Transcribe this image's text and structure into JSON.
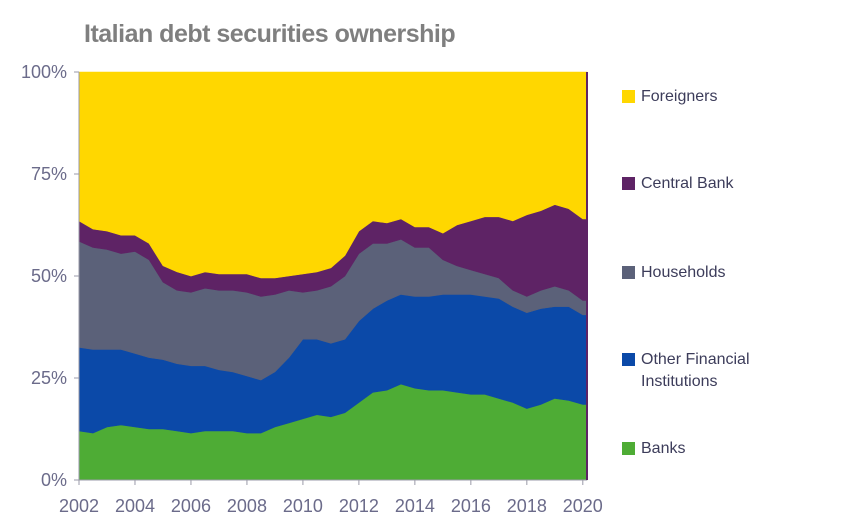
{
  "chart_data": {
    "type": "area",
    "title": "Italian debt securities ownership",
    "xlabel": "",
    "ylabel": "",
    "stacked": true,
    "ylim": [
      0,
      100
    ],
    "xlim": [
      2002,
      2020.15
    ],
    "x_ticks": [
      "2002",
      "2004",
      "2006",
      "2008",
      "2010",
      "2012",
      "2014",
      "2016",
      "2018",
      "2020"
    ],
    "y_ticks": [
      "0%",
      "25%",
      "50%",
      "75%",
      "100%"
    ],
    "grid": false,
    "legend_position": "right",
    "x": [
      2002,
      2002.5,
      2003,
      2003.5,
      2004,
      2004.5,
      2005,
      2005.5,
      2006,
      2006.5,
      2007,
      2007.5,
      2008,
      2008.5,
      2009,
      2009.5,
      2010,
      2010.5,
      2011,
      2011.5,
      2012,
      2012.5,
      2013,
      2013.5,
      2014,
      2014.5,
      2015,
      2015.5,
      2016,
      2016.5,
      2017,
      2017.5,
      2018,
      2018.5,
      2019,
      2019.5,
      2020
    ],
    "series": [
      {
        "name": "Banks",
        "color": "#4eac35",
        "values": [
          12,
          11.5,
          13,
          13.5,
          13,
          12.5,
          12.5,
          12,
          11.5,
          12,
          12,
          12,
          11.5,
          11.5,
          13,
          14,
          15,
          16,
          15.5,
          16.5,
          19,
          21.5,
          22,
          23.5,
          22.5,
          22,
          22,
          21.5,
          21,
          21,
          20,
          19,
          17.5,
          18.5,
          20,
          19.5,
          18.5
        ]
      },
      {
        "name": "Other Financial Institutions",
        "color": "#0b49a8",
        "values": [
          20.5,
          20.5,
          19,
          18.5,
          18,
          17.5,
          17,
          16.5,
          16.5,
          16,
          15,
          14.5,
          14,
          13,
          13.5,
          16,
          19.5,
          18.5,
          18,
          18,
          20,
          20.5,
          22,
          22,
          22.5,
          23,
          23.5,
          24,
          24.5,
          24,
          24.5,
          23.5,
          23.5,
          23.5,
          22.5,
          23,
          22
        ]
      },
      {
        "name": "Households",
        "color": "#5b6179",
        "values": [
          26,
          25,
          24.5,
          23.5,
          25,
          24,
          19,
          18,
          18,
          19,
          19.5,
          20,
          20.5,
          20.5,
          19,
          16.5,
          11.5,
          12,
          14,
          15.5,
          16.5,
          16,
          14,
          13.5,
          12,
          12,
          8.5,
          7,
          6,
          5.5,
          5,
          4,
          4,
          4.5,
          5,
          4,
          3.5
        ]
      },
      {
        "name": "Central Bank",
        "color": "#5e2365",
        "values": [
          5,
          4.5,
          4.5,
          4.5,
          4,
          4,
          4,
          4.5,
          4,
          4,
          4,
          4,
          4.5,
          4.5,
          4,
          3.5,
          4.5,
          4.5,
          4.5,
          5,
          5.5,
          5.5,
          5,
          5,
          5,
          5,
          6.5,
          10,
          12,
          14,
          15,
          17,
          20,
          19.5,
          20,
          20,
          20
        ]
      },
      {
        "name": "Foreigners",
        "color": "#ffd700",
        "values": [
          36.5,
          38.5,
          39,
          40,
          40,
          42,
          47.5,
          49,
          50,
          49,
          49.5,
          49.5,
          49.5,
          50.5,
          50.5,
          50,
          49.5,
          49,
          48,
          45,
          39,
          36.5,
          37,
          36,
          38,
          38,
          39.5,
          37.5,
          36.5,
          35.5,
          35.5,
          36.5,
          35,
          34,
          32.5,
          33.5,
          36
        ]
      }
    ]
  }
}
